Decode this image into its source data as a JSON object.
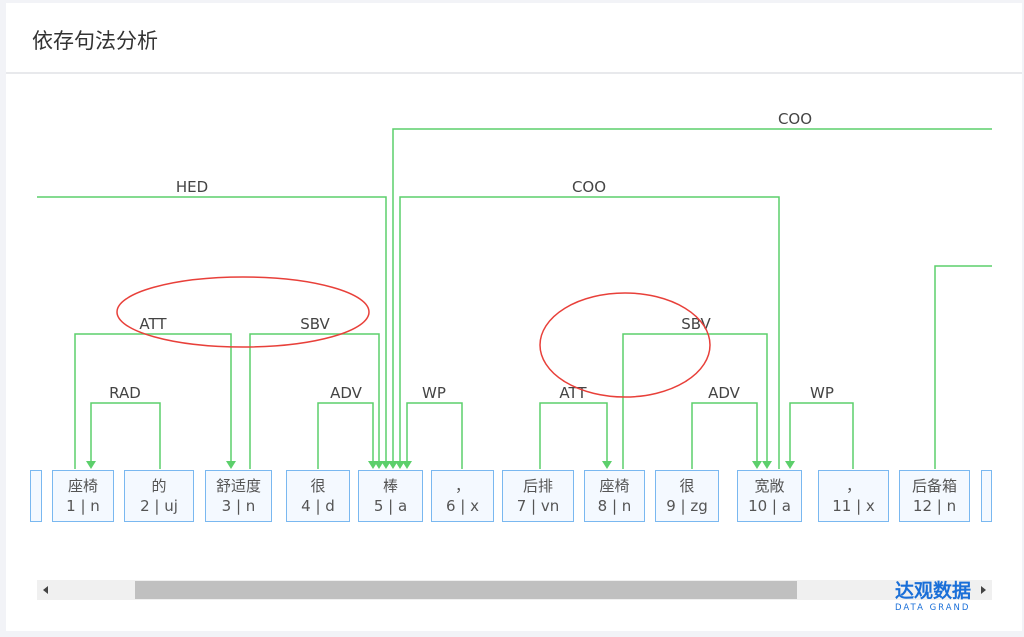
{
  "title": "依存句法分析",
  "colors": {
    "arc": "#5ccf6b",
    "box_border": "#7ab8f0",
    "box_bg": "#f4f9ff",
    "highlight_ellipse": "#e8403a",
    "logo": "#1a6fd8"
  },
  "tokens": [
    {
      "word": "座椅",
      "tag": "1 | n"
    },
    {
      "word": "的",
      "tag": "2 | uj"
    },
    {
      "word": "舒适度",
      "tag": "3 | n"
    },
    {
      "word": "很",
      "tag": "4 | d"
    },
    {
      "word": "棒",
      "tag": "5 | a"
    },
    {
      "word": "，",
      "tag": "6 | x"
    },
    {
      "word": "后排",
      "tag": "7 | vn"
    },
    {
      "word": "座椅",
      "tag": "8 | n"
    },
    {
      "word": "很",
      "tag": "9 | zg"
    },
    {
      "word": "宽敞",
      "tag": "10 | a"
    },
    {
      "word": "，",
      "tag": "11 | x"
    },
    {
      "word": "后备箱",
      "tag": "12 | n"
    }
  ],
  "arcs": [
    {
      "label": "RAD",
      "head": 2,
      "dependent": 1
    },
    {
      "label": "ATT",
      "head": 3,
      "dependent": 1
    },
    {
      "label": "SBV",
      "head": 5,
      "dependent": 3
    },
    {
      "label": "ADV",
      "head": 5,
      "dependent": 4
    },
    {
      "label": "WP",
      "head": 5,
      "dependent": 6
    },
    {
      "label": "HED",
      "head": 0,
      "dependent": 5
    },
    {
      "label": "COO",
      "head": 5,
      "dependent": "offscreen"
    },
    {
      "label": "COO",
      "head": 5,
      "dependent": 10
    },
    {
      "label": "ATT",
      "head": 8,
      "dependent": 7
    },
    {
      "label": "SBV",
      "head": 10,
      "dependent": 8
    },
    {
      "label": "ADV",
      "head": 10,
      "dependent": 9
    },
    {
      "label": "WP",
      "head": 10,
      "dependent": 11
    }
  ],
  "logo": {
    "cn": "达观数据",
    "en": "DATA GRAND"
  }
}
